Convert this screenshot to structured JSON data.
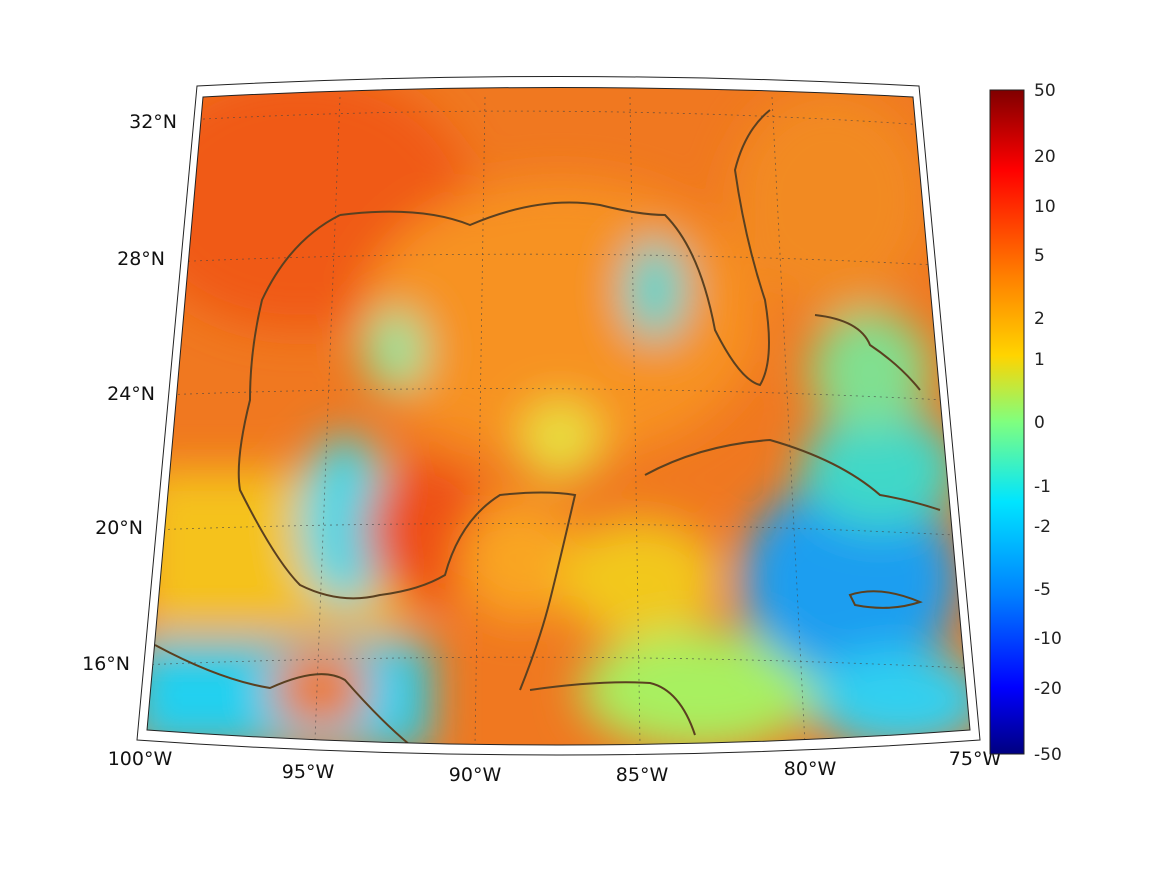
{
  "map": {
    "longitude_labels": [
      "100°W",
      "95°W",
      "90°W",
      "85°W",
      "80°W",
      "75°W"
    ],
    "latitude_labels": [
      "32°N",
      "28°N",
      "24°N",
      "20°N",
      "16°N"
    ],
    "extent": {
      "lon_min": -100,
      "lon_max": -75,
      "lat_min": 14.5,
      "lat_max": 33
    },
    "graticule_style": "dotted",
    "coastline_color": "#5a4020"
  },
  "colorbar": {
    "colormap": "jet",
    "ticks": [
      "50",
      "20",
      "10",
      "5",
      "2",
      "1",
      "0",
      "-1",
      "-2",
      "-5",
      "-10",
      "-20",
      "-50"
    ]
  }
}
